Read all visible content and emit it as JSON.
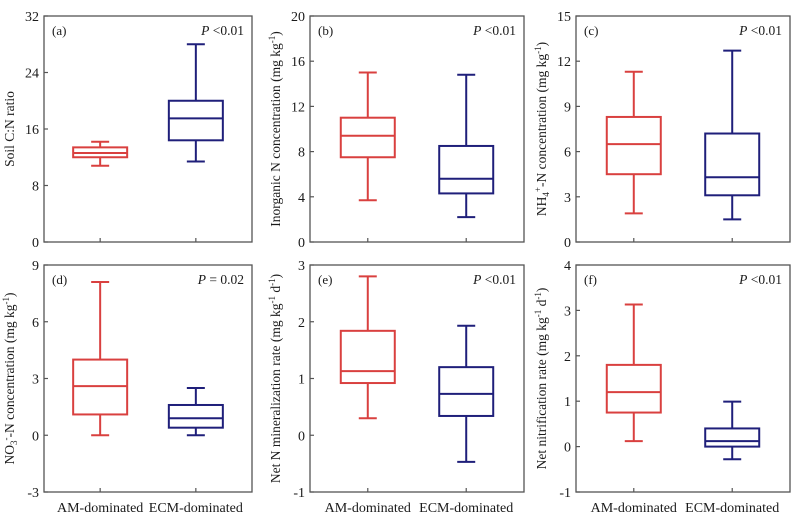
{
  "colors": {
    "am": "#d9403f",
    "ecm": "#1f1f7a",
    "axis": "#555555"
  },
  "chart_data": [
    {
      "id": "a",
      "type": "box",
      "panel_label": "(a)",
      "p_value": "<0.01",
      "p_sep": " ",
      "ylabel": [
        {
          "t": "Soil C:N ratio"
        }
      ],
      "ylim": [
        0,
        32
      ],
      "yticks": [
        0,
        8,
        16,
        24,
        32
      ],
      "categories": [
        "AM-dominated",
        "ECM-dominated"
      ],
      "show_xlabels": false,
      "boxes": [
        {
          "group": "AM-dominated",
          "min": 10.8,
          "q1": 12.0,
          "median": 12.6,
          "q3": 13.4,
          "max": 14.2
        },
        {
          "group": "ECM-dominated",
          "min": 11.4,
          "q1": 14.4,
          "median": 17.5,
          "q3": 20.0,
          "max": 28.0
        }
      ]
    },
    {
      "id": "b",
      "type": "box",
      "panel_label": "(b)",
      "p_value": "<0.01",
      "p_sep": " ",
      "ylabel": [
        {
          "t": "Inorganic N concentration (mg kg"
        },
        {
          "t": "-1",
          "s": "sup"
        },
        {
          "t": ")"
        }
      ],
      "ylim": [
        0,
        20
      ],
      "yticks": [
        0,
        4,
        8,
        12,
        16,
        20
      ],
      "categories": [
        "AM-dominated",
        "ECM-dominated"
      ],
      "show_xlabels": false,
      "boxes": [
        {
          "group": "AM-dominated",
          "min": 3.7,
          "q1": 7.5,
          "median": 9.4,
          "q3": 11.0,
          "max": 15.0
        },
        {
          "group": "ECM-dominated",
          "min": 2.2,
          "q1": 4.3,
          "median": 5.6,
          "q3": 8.5,
          "max": 14.8
        }
      ]
    },
    {
      "id": "c",
      "type": "box",
      "panel_label": "(c)",
      "p_value": "<0.01",
      "p_sep": " ",
      "ylabel": [
        {
          "t": "NH"
        },
        {
          "t": "4",
          "s": "sub"
        },
        {
          "t": "+",
          "s": "sup"
        },
        {
          "t": "-N concentration (mg kg"
        },
        {
          "t": "-1",
          "s": "sup"
        },
        {
          "t": ")"
        }
      ],
      "ylim": [
        0,
        15
      ],
      "yticks": [
        0,
        3,
        6,
        9,
        12,
        15
      ],
      "categories": [
        "AM-dominated",
        "ECM-dominated"
      ],
      "show_xlabels": false,
      "boxes": [
        {
          "group": "AM-dominated",
          "min": 1.9,
          "q1": 4.5,
          "median": 6.5,
          "q3": 8.3,
          "max": 11.3
        },
        {
          "group": "ECM-dominated",
          "min": 1.5,
          "q1": 3.1,
          "median": 4.3,
          "q3": 7.2,
          "max": 12.7
        }
      ]
    },
    {
      "id": "d",
      "type": "box",
      "panel_label": "(d)",
      "p_value": "= 0.02",
      "p_sep": " ",
      "ylabel": [
        {
          "t": "NO"
        },
        {
          "t": "3",
          "s": "sub"
        },
        {
          "t": "-",
          "s": "sup"
        },
        {
          "t": "-N concentration (mg kg"
        },
        {
          "t": "-1",
          "s": "sup"
        },
        {
          "t": ")"
        }
      ],
      "ylim": [
        -3,
        9
      ],
      "yticks": [
        -3,
        0,
        3,
        6,
        9
      ],
      "categories": [
        "AM-dominated",
        "ECM-dominated"
      ],
      "show_xlabels": true,
      "boxes": [
        {
          "group": "AM-dominated",
          "min": 0.0,
          "q1": 1.1,
          "median": 2.6,
          "q3": 4.0,
          "max": 8.1
        },
        {
          "group": "ECM-dominated",
          "min": 0.0,
          "q1": 0.4,
          "median": 0.9,
          "q3": 1.6,
          "max": 2.5
        }
      ]
    },
    {
      "id": "e",
      "type": "box",
      "panel_label": "(e)",
      "p_value": "<0.01",
      "p_sep": " ",
      "ylabel": [
        {
          "t": "Net N mineralization rate (mg kg"
        },
        {
          "t": "-1",
          "s": "sup"
        },
        {
          "t": " d"
        },
        {
          "t": "-1",
          "s": "sup"
        },
        {
          "t": ")"
        }
      ],
      "ylim": [
        -1,
        3
      ],
      "yticks": [
        -1,
        0,
        1,
        2,
        3
      ],
      "categories": [
        "AM-dominated",
        "ECM-dominated"
      ],
      "show_xlabels": true,
      "boxes": [
        {
          "group": "AM-dominated",
          "min": 0.3,
          "q1": 0.92,
          "median": 1.13,
          "q3": 1.84,
          "max": 2.8
        },
        {
          "group": "ECM-dominated",
          "min": -0.47,
          "q1": 0.34,
          "median": 0.73,
          "q3": 1.2,
          "max": 1.93
        }
      ]
    },
    {
      "id": "f",
      "type": "box",
      "panel_label": "(f)",
      "p_value": "<0.01",
      "p_sep": " ",
      "ylabel": [
        {
          "t": "Net nitrification rate (mg kg"
        },
        {
          "t": "-1",
          "s": "sup"
        },
        {
          "t": " d"
        },
        {
          "t": "-1",
          "s": "sup"
        },
        {
          "t": ")"
        }
      ],
      "ylim": [
        -1,
        4
      ],
      "yticks": [
        -1,
        0,
        1,
        2,
        3,
        4
      ],
      "categories": [
        "AM-dominated",
        "ECM-dominated"
      ],
      "show_xlabels": true,
      "boxes": [
        {
          "group": "AM-dominated",
          "min": 0.12,
          "q1": 0.75,
          "median": 1.2,
          "q3": 1.8,
          "max": 3.13
        },
        {
          "group": "ECM-dominated",
          "min": -0.28,
          "q1": 0.0,
          "median": 0.12,
          "q3": 0.4,
          "max": 0.99
        }
      ]
    }
  ]
}
